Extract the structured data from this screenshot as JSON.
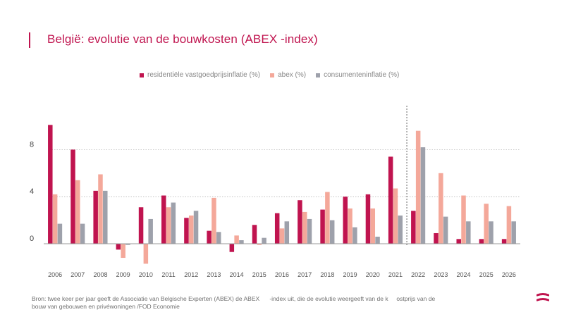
{
  "title": "België: evolutie van de bouwkosten (ABEX  -index)",
  "legend": {
    "residential": "residentiële vastgoedprijsinflatie (%)",
    "abex": "abex (%)",
    "cpi": "consumenteninflatie (%)"
  },
  "footer": {
    "line1": "Bron: twee keer per jaar geeft de Associatie van Belgische Experten (ABEX) de ABEX      -index uit, die de evolutie weergeeft van de k     ostprijs van de",
    "line2": "bouw van gebouwen en privéwoningen /FOD Economie"
  },
  "colors": {
    "residential": "#c0144f",
    "abex": "#f4a89a",
    "cpi": "#9ea1ab",
    "title": "#c0144f"
  },
  "chart_data": {
    "type": "bar",
    "categories": [
      "2006",
      "2007",
      "2008",
      "2009",
      "2010",
      "2011",
      "2012",
      "2013",
      "2014",
      "2015",
      "2016",
      "2017",
      "2018",
      "2019",
      "2020",
      "2021",
      "2022",
      "2023",
      "2024",
      "2025",
      "2026"
    ],
    "series": [
      {
        "name": "residentiële vastgoedprijsinflatie (%)",
        "values": [
          10.1,
          8.0,
          4.5,
          -0.5,
          3.1,
          4.1,
          2.2,
          1.1,
          -0.7,
          1.6,
          2.6,
          3.7,
          2.9,
          4.0,
          4.2,
          7.4,
          2.8,
          0.9,
          0.4,
          0.4,
          0.4
        ]
      },
      {
        "name": "abex (%)",
        "values": [
          4.2,
          5.4,
          5.9,
          -1.2,
          -1.7,
          3.1,
          2.4,
          3.9,
          0.7,
          -0.1,
          1.3,
          2.7,
          4.4,
          3.0,
          3.0,
          4.7,
          9.6,
          6.0,
          4.1,
          3.4,
          3.2
        ]
      },
      {
        "name": "consumenteninflatie (%)",
        "values": [
          1.7,
          1.7,
          4.5,
          -0.1,
          2.1,
          3.5,
          2.8,
          1.0,
          0.3,
          0.5,
          1.9,
          2.1,
          2.0,
          1.4,
          0.6,
          2.4,
          8.2,
          2.3,
          1.9,
          1.9,
          1.9
        ]
      }
    ],
    "yticks": [
      0,
      4,
      8
    ],
    "ylim": [
      -2.3,
      11.5
    ],
    "grid": "dotted horizontal",
    "forecast_divider_after": "2021",
    "legend_position": "top"
  }
}
